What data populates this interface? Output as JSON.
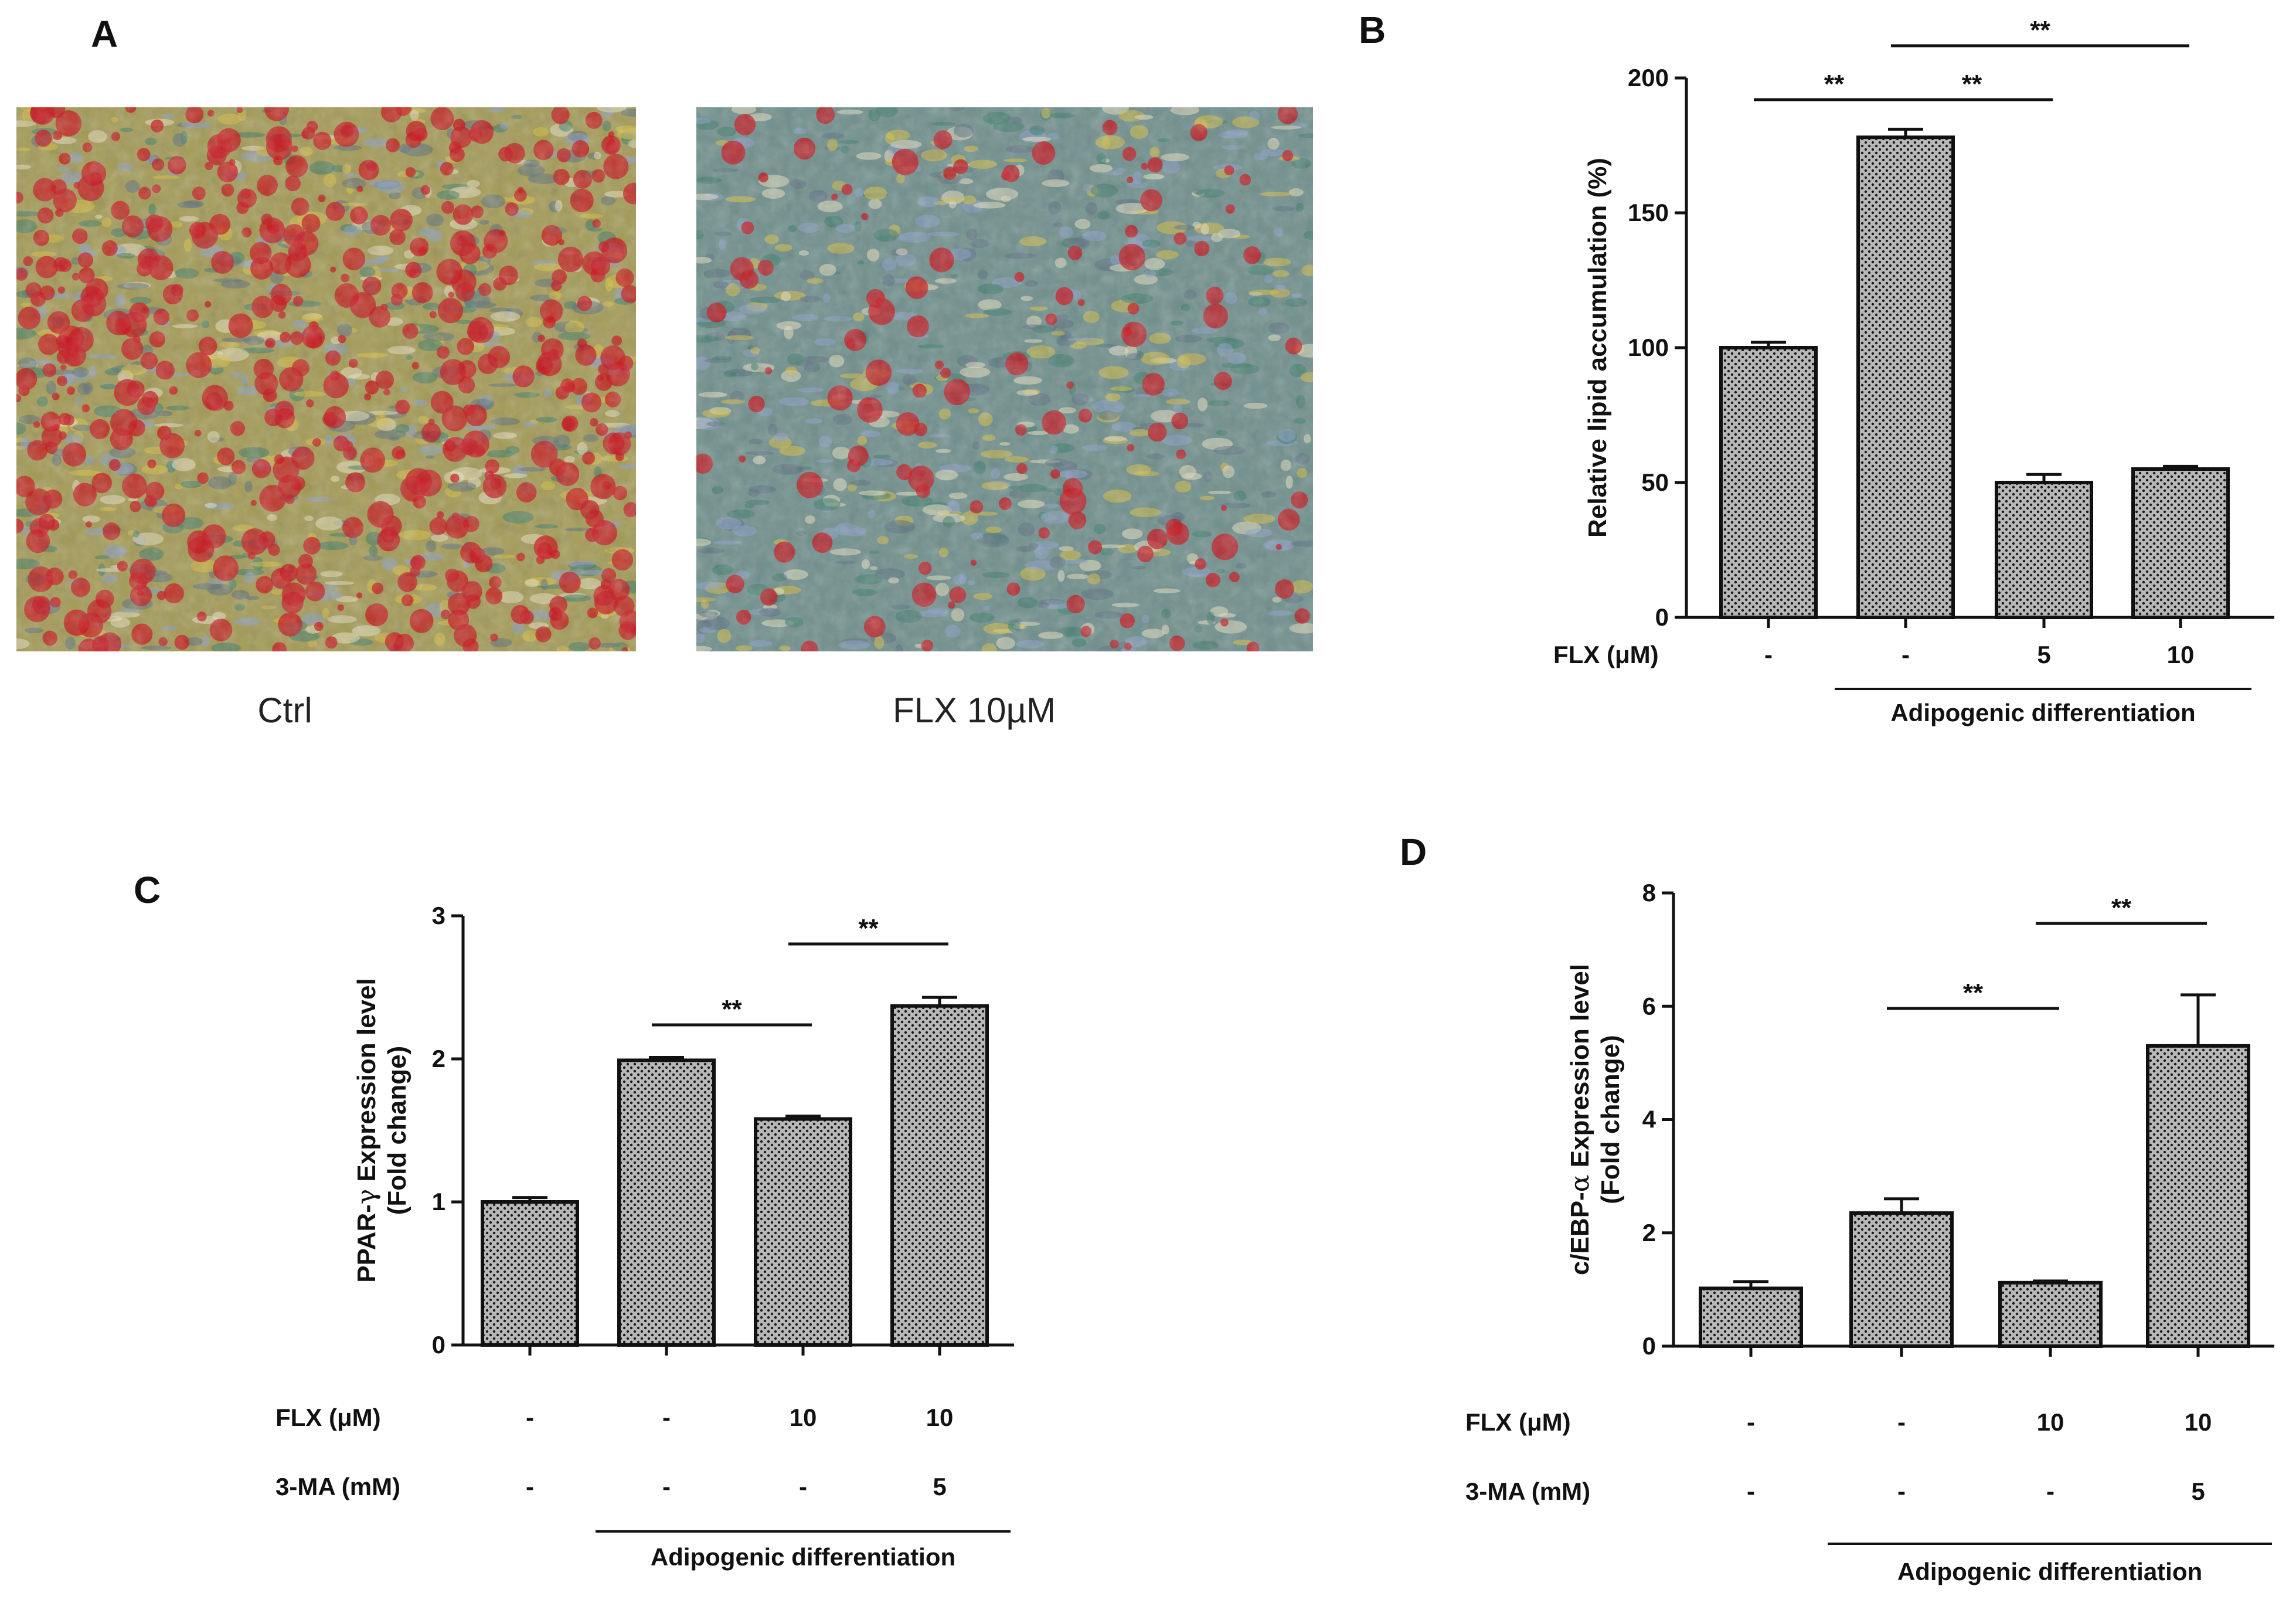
{
  "panels": {
    "a": {
      "letter": "A",
      "caption_left": "Ctrl",
      "caption_right": "FLX 10µM"
    },
    "b": {
      "letter": "B"
    },
    "c": {
      "letter": "C"
    },
    "d": {
      "letter": "D"
    }
  },
  "colors": {
    "bar_fill": "#b8b8b8",
    "bar_hatch": "#1a1a1a",
    "stain_red": "#c8141e",
    "stain_yellow": "#d8c040",
    "cell_teal": "#3a7c6a",
    "cell_blue": "#8aa0c8"
  },
  "chart_data": [
    {
      "id": "b",
      "type": "bar",
      "title": "",
      "ylabel": "Relative lipid accumulation (%)",
      "ylim": [
        0,
        200
      ],
      "yticks": [
        0,
        50,
        100,
        150,
        200
      ],
      "categories": [
        "1",
        "2",
        "3",
        "4"
      ],
      "values": [
        100,
        178,
        50,
        55
      ],
      "errors": [
        2,
        3,
        3,
        1
      ],
      "condition_rows": [
        {
          "label": "FLX (μM)",
          "values": [
            "-",
            "-",
            "5",
            "10"
          ]
        }
      ],
      "group_label": "Adipogenic differentiation",
      "group_span": [
        1,
        3
      ],
      "significance": [
        {
          "from": 0,
          "to": 1,
          "text": "**"
        },
        {
          "from": 1,
          "to": 2,
          "text": "**"
        },
        {
          "from": 1,
          "to": 3,
          "text": "**"
        }
      ]
    },
    {
      "id": "c",
      "type": "bar",
      "title": "",
      "ylabel_prefix": "PPAR-",
      "ylabel_symbol": "γ",
      "ylabel_suffix": " Expression level",
      "ylabel_line2": "(Fold change)",
      "ylim": [
        0,
        3
      ],
      "yticks": [
        0,
        1,
        2,
        3
      ],
      "categories": [
        "1",
        "2",
        "3",
        "4"
      ],
      "values": [
        1.0,
        1.99,
        1.58,
        2.37
      ],
      "errors": [
        0.03,
        0.02,
        0.02,
        0.06
      ],
      "condition_rows": [
        {
          "label": "FLX (μM)",
          "values": [
            "-",
            "-",
            "10",
            "10"
          ]
        },
        {
          "label": "3-MA (mM)",
          "values": [
            "-",
            "-",
            "-",
            "5"
          ]
        }
      ],
      "group_label": "Adipogenic differentiation",
      "group_span": [
        1,
        3
      ],
      "significance": [
        {
          "from": 1,
          "to": 2,
          "text": "**"
        },
        {
          "from": 2,
          "to": 3,
          "text": "**"
        }
      ]
    },
    {
      "id": "d",
      "type": "bar",
      "title": "",
      "ylabel_prefix": "c/EBP-",
      "ylabel_symbol": "α",
      "ylabel_suffix": " Expression level",
      "ylabel_line2": "(Fold change)",
      "ylim": [
        0,
        8
      ],
      "yticks": [
        0,
        2,
        4,
        6,
        8
      ],
      "categories": [
        "1",
        "2",
        "3",
        "4"
      ],
      "values": [
        1.02,
        2.35,
        1.12,
        5.3
      ],
      "errors": [
        0.12,
        0.25,
        0.03,
        0.9
      ],
      "condition_rows": [
        {
          "label": "FLX (μM)",
          "values": [
            "-",
            "-",
            "10",
            "10"
          ]
        },
        {
          "label": "3-MA (mM)",
          "values": [
            "-",
            "-",
            "-",
            "5"
          ]
        }
      ],
      "group_label": "Adipogenic differentiation",
      "group_span": [
        1,
        3
      ],
      "significance": [
        {
          "from": 1,
          "to": 2,
          "text": "**"
        },
        {
          "from": 2,
          "to": 3,
          "text": "**"
        }
      ]
    }
  ]
}
